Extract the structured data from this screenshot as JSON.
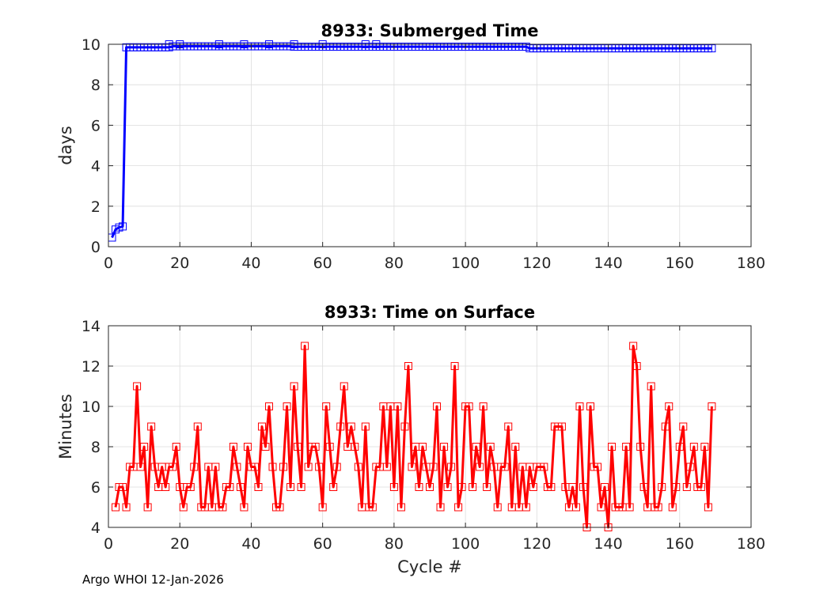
{
  "footer": "Argo WHOI 12-Jan-2026",
  "chart_data": [
    {
      "id": "submerged",
      "type": "line",
      "title": "8933: Submerged Time",
      "xlabel": "",
      "ylabel": "days",
      "xlim": [
        0,
        180
      ],
      "ylim": [
        0,
        10
      ],
      "xticks": [
        0,
        20,
        40,
        60,
        80,
        100,
        120,
        140,
        160,
        180
      ],
      "yticks": [
        0,
        2,
        4,
        6,
        8,
        10
      ],
      "grid": true,
      "color": "#0000ff",
      "marker": "square",
      "segments": [
        {
          "x0": 1,
          "x1": 1,
          "y": 0.45
        },
        {
          "x0": 2,
          "x1": 2,
          "y": 0.85
        },
        {
          "x0": 3,
          "x1": 3,
          "y": 0.95
        },
        {
          "x0": 4,
          "x1": 4,
          "y": 1.0
        },
        {
          "x0": 5,
          "x1": 17,
          "y": 9.85
        },
        {
          "x0": 18,
          "x1": 51,
          "y": 9.9
        },
        {
          "x0": 52,
          "x1": 117,
          "y": 9.88
        },
        {
          "x0": 118,
          "x1": 169,
          "y": 9.8
        }
      ],
      "spikes": [
        [
          17,
          10.0
        ],
        [
          20,
          10.0
        ],
        [
          31,
          10.0
        ],
        [
          38,
          10.0
        ],
        [
          45,
          10.0
        ],
        [
          52,
          10.0
        ],
        [
          60,
          10.0
        ],
        [
          72,
          10.0
        ],
        [
          75,
          10.0
        ]
      ]
    },
    {
      "id": "surface",
      "type": "line",
      "title": "8933: Time on Surface",
      "xlabel": "Cycle #",
      "ylabel": "Minutes",
      "xlim": [
        0,
        180
      ],
      "ylim": [
        4,
        14
      ],
      "xticks": [
        0,
        20,
        40,
        60,
        80,
        100,
        120,
        140,
        160,
        180
      ],
      "yticks": [
        4,
        6,
        8,
        10,
        12,
        14
      ],
      "grid": true,
      "color": "#ff0000",
      "marker": "square",
      "x_start": 2,
      "values": [
        5,
        6,
        6,
        5,
        7,
        7,
        11,
        7,
        8,
        5,
        9,
        7,
        6,
        7,
        6,
        7,
        7,
        8,
        6,
        5,
        6,
        6,
        7,
        9,
        5,
        5,
        7,
        5,
        7,
        5,
        5,
        6,
        6,
        8,
        7,
        6,
        5,
        8,
        7,
        7,
        6,
        9,
        8,
        10,
        7,
        5,
        5,
        7,
        10,
        6,
        11,
        8,
        6,
        13,
        7,
        8,
        8,
        7,
        5,
        10,
        8,
        6,
        7,
        9,
        11,
        8,
        9,
        8,
        7,
        5,
        9,
        5,
        5,
        7,
        7,
        10,
        7,
        10,
        6,
        10,
        5,
        9,
        12,
        7,
        8,
        6,
        8,
        7,
        6,
        7,
        10,
        5,
        8,
        6,
        7,
        12,
        5,
        6,
        10,
        10,
        6,
        8,
        7,
        10,
        6,
        8,
        7,
        5,
        7,
        7,
        9,
        5,
        8,
        5,
        7,
        5,
        7,
        6,
        7,
        7,
        7,
        6,
        6,
        9,
        9,
        9,
        6,
        5,
        6,
        5,
        10,
        6,
        4,
        10,
        7,
        7,
        5,
        6,
        4,
        8,
        5,
        5,
        5,
        8,
        5,
        13,
        12,
        8,
        6,
        5,
        11,
        5,
        5,
        6,
        9,
        10,
        5,
        6,
        8,
        9,
        6,
        7,
        8,
        6,
        6,
        8,
        5,
        10
      ]
    }
  ]
}
